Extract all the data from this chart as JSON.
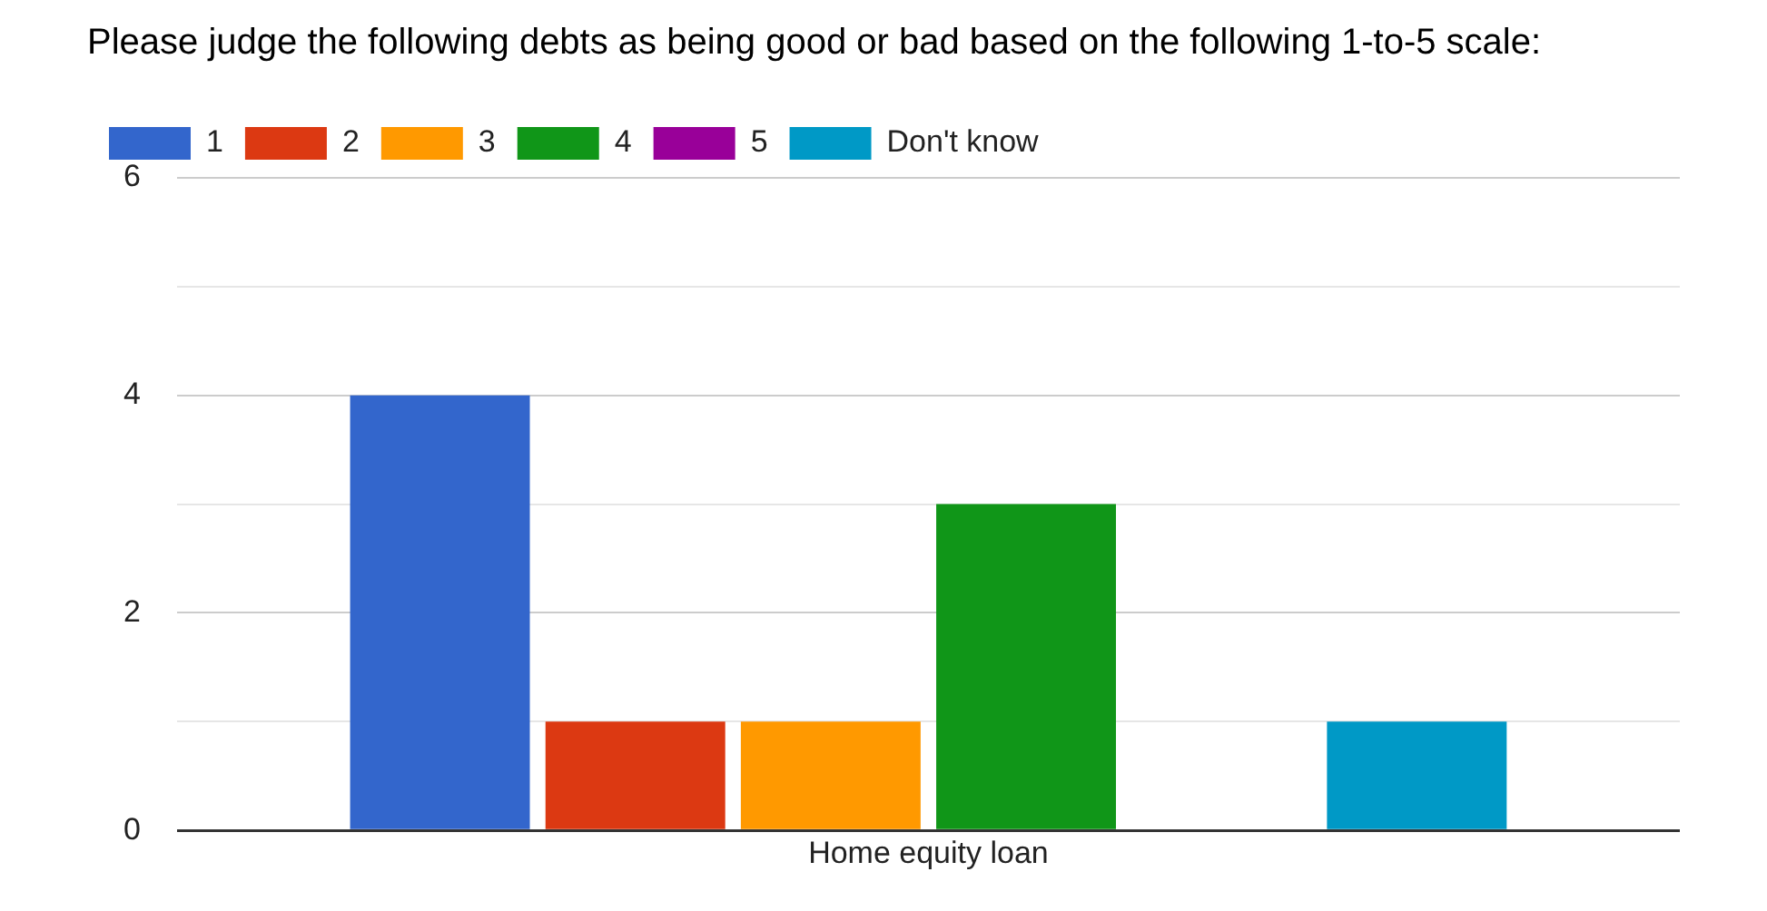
{
  "chart_data": {
    "type": "bar",
    "title": "Please judge the following debts as being good or bad based on the following 1-to-5 scale:",
    "categories": [
      "Home equity loan"
    ],
    "series": [
      {
        "name": "1",
        "color": "#3366cc",
        "values": [
          4
        ]
      },
      {
        "name": "2",
        "color": "#dc3912",
        "values": [
          1
        ]
      },
      {
        "name": "3",
        "color": "#ff9900",
        "values": [
          1
        ]
      },
      {
        "name": "4",
        "color": "#109618",
        "values": [
          3
        ]
      },
      {
        "name": "5",
        "color": "#990099",
        "values": [
          0
        ]
      },
      {
        "name": "Don't know",
        "color": "#0099c6",
        "values": [
          1
        ]
      }
    ],
    "ylim": [
      0,
      6
    ],
    "yticks": [
      0,
      {
        "value": 1,
        "label": null
      },
      2,
      {
        "value": 3,
        "label": null
      },
      4,
      {
        "value": 5,
        "label": null
      },
      6
    ],
    "grid": "y",
    "legend": "top left"
  }
}
